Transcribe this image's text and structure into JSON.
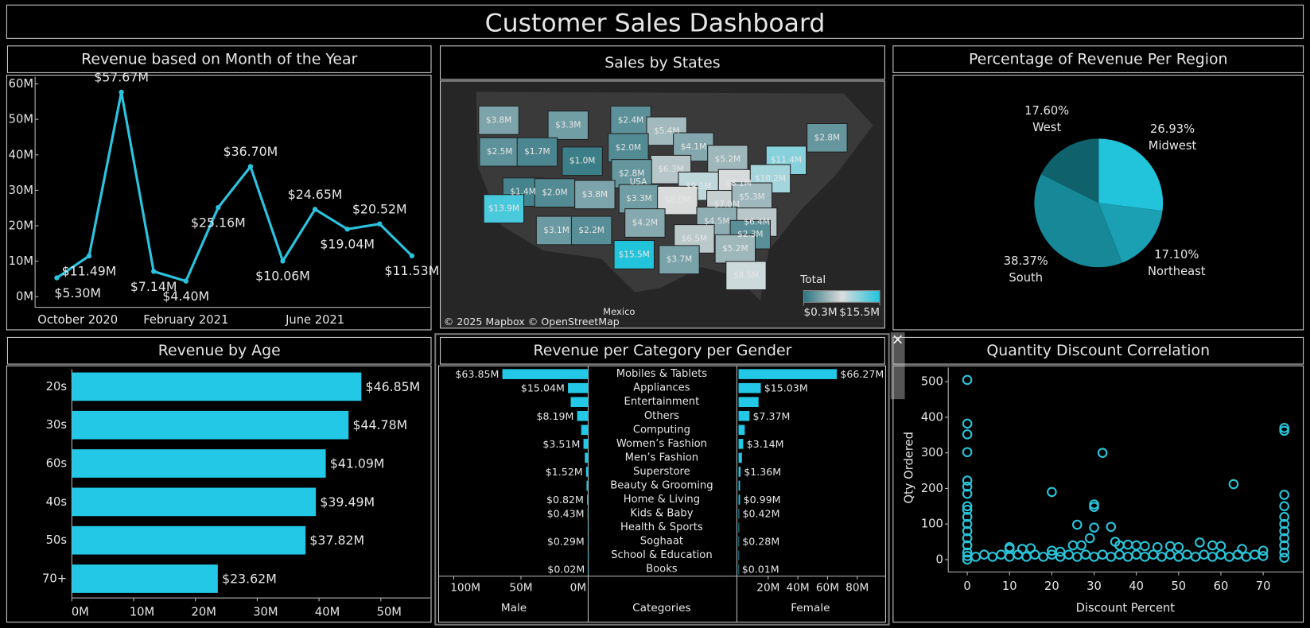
{
  "title": "Customer Sales Dashboard",
  "chart_data": [
    {
      "type": "line",
      "title": "Revenue based on Month of the Year",
      "color": "#2bc4e0",
      "categories": [
        "October 2020",
        null,
        null,
        null,
        "February 2021",
        null,
        null,
        null,
        "June 2021",
        null,
        null,
        null
      ],
      "values": [
        5.3,
        11.49,
        57.67,
        7.14,
        4.4,
        25.16,
        36.7,
        10.06,
        24.65,
        19.04,
        20.52,
        11.53
      ],
      "value_labels": [
        "$5.30M",
        "$11.49M",
        "$57.67M",
        "$7.14M",
        "$4.40M",
        "$25.16M",
        "$36.70M",
        "$10.06M",
        "$24.65M",
        "$19.04M",
        "$20.52M",
        "$11.53M"
      ],
      "ylim": [
        -3,
        62
      ],
      "yticks": [
        {
          "value": 0,
          "label": "0M"
        },
        {
          "value": 10,
          "label": "10M"
        },
        {
          "value": 20,
          "label": "20M"
        },
        {
          "value": 30,
          "label": "30M"
        },
        {
          "value": 40,
          "label": "40M"
        },
        {
          "value": 50,
          "label": "50M"
        },
        {
          "value": 60,
          "label": "60M"
        }
      ]
    },
    {
      "type": "map",
      "title": "Sales by States",
      "values": [
        3.8,
        3.3,
        2.4,
        5.4,
        2.8,
        2.5,
        1.7,
        1.0,
        2.0,
        4.1,
        5.2,
        11.4,
        6.3,
        2.8,
        1.4,
        2.0,
        3.8,
        3.3,
        9.1,
        8.1,
        10.2,
        13.9,
        8.0,
        7.0,
        5.3,
        3.1,
        2.2,
        4.2,
        4.5,
        6.4,
        6.5,
        2.3,
        15.5,
        5.2,
        3.7,
        8.5
      ],
      "value_labels": [
        "$3.8M",
        "$3.3M",
        "$2.4M",
        "$5.4M",
        "$2.8M",
        "$2.5M",
        "$1.7M",
        "$1.0M",
        "$2.0M",
        "$4.1M",
        "$5.2M",
        "$11.4M",
        "$6.3M",
        "$2.8M",
        "$1.4M",
        "$2.0M",
        "$3.8M",
        "$3.3M",
        "$9.1M",
        "$8.1M",
        "$10.2M",
        "$13.9M",
        "$8.0M",
        "$7.0M",
        "$5.3M",
        "$3.1M",
        "$2.2M",
        "$4.2M",
        "$4.5M",
        "$6.4M",
        "$6.5M",
        "$2.3M",
        "$15.5M",
        "$5.2M",
        "$3.7M",
        "$8.5M"
      ],
      "colors": {
        "low": "#2b7480",
        "mid": "#dcdcdc",
        "high": "#22c4dc"
      },
      "legend": {
        "title": "Total",
        "ticks": [
          {
            "value": 0.3,
            "label": "$0.3M"
          },
          {
            "value": 15.5,
            "label": "$15.5M"
          }
        ]
      },
      "annotations": [
        "USA",
        "Mexico"
      ],
      "attribution": "© 2025 Mapbox © OpenStreetMap"
    },
    {
      "type": "pie",
      "title": "Percentage of Revenue Per Region",
      "categories": [
        "Midwest",
        "Northeast",
        "South",
        "West"
      ],
      "values": [
        26.93,
        17.1,
        38.37,
        17.6
      ],
      "value_labels": [
        "26.93%",
        "17.10%",
        "38.37%",
        "17.60%"
      ],
      "colors": [
        "#22c4dc",
        "#1a9fb3",
        "#168898",
        "#0f626c"
      ]
    },
    {
      "type": "hbar",
      "title": "Revenue by Age",
      "color": "#22c8e5",
      "categories": [
        "20s",
        "30s",
        "60s",
        "40s",
        "50s",
        "70+"
      ],
      "values": [
        46.85,
        44.78,
        41.09,
        39.49,
        37.82,
        23.62
      ],
      "value_labels": [
        "$46.85M",
        "$44.78M",
        "$41.09M",
        "$39.49M",
        "$37.82M",
        "$23.62M"
      ],
      "xlim": [
        0,
        58
      ],
      "xticks": [
        {
          "value": 0,
          "label": "0M"
        },
        {
          "value": 10,
          "label": "10M"
        },
        {
          "value": 20,
          "label": "20M"
        },
        {
          "value": 30,
          "label": "30M"
        },
        {
          "value": 40,
          "label": "40M"
        },
        {
          "value": 50,
          "label": "50M"
        }
      ]
    },
    {
      "type": "butterfly",
      "title": "Revenue per Category per Gender",
      "color": "#22c8e5",
      "categories_label": "Categories",
      "categories": [
        "Mobiles & Tablets",
        "Appliances",
        "Entertainment",
        "Others",
        "Computing",
        "Women’s Fashion",
        "Men’s Fashion",
        "Superstore",
        "Beauty & Grooming",
        "Home & Living",
        "Kids & Baby",
        "Health & Sports",
        "Soghaat",
        "School & Education",
        "Books"
      ],
      "series": [
        {
          "name": "Male",
          "values": [
            63.85,
            15.04,
            13.0,
            8.19,
            5.2,
            3.51,
            2.5,
            1.52,
            1.2,
            0.82,
            0.43,
            0.3,
            0.29,
            0.05,
            0.02
          ],
          "value_labels": [
            "$63.85M",
            "$15.04M",
            null,
            "$8.19M",
            null,
            "$3.51M",
            null,
            "$1.52M",
            null,
            "$0.82M",
            "$0.43M",
            null,
            "$0.29M",
            null,
            "$0.02M"
          ],
          "xlim": [
            0,
            110
          ],
          "xticks": [
            {
              "value": 100,
              "label": "100M"
            },
            {
              "value": 50,
              "label": "50M"
            },
            {
              "value": 0,
              "label": "0M"
            }
          ]
        },
        {
          "name": "Female",
          "values": [
            66.27,
            15.03,
            13.5,
            7.37,
            4.2,
            3.14,
            2.3,
            1.36,
            1.0,
            0.99,
            0.42,
            0.4,
            0.28,
            0.1,
            0.01
          ],
          "value_labels": [
            "$66.27M",
            "$15.03M",
            null,
            "$7.37M",
            null,
            "$3.14M",
            null,
            "$1.36M",
            null,
            "$0.99M",
            "$0.42M",
            null,
            "$0.28M",
            null,
            "$0.01M"
          ],
          "xlim": [
            0,
            98
          ],
          "xticks": [
            {
              "value": 20,
              "label": "20M"
            },
            {
              "value": 40,
              "label": "40M"
            },
            {
              "value": 60,
              "label": "60M"
            },
            {
              "value": 80,
              "label": "80M"
            }
          ]
        }
      ]
    },
    {
      "type": "scatter",
      "title": "Quantity Discount Correlation",
      "color": "#29c5db",
      "x_label": "Discount Percent",
      "y_label": "Qty Ordered",
      "x": [
        0,
        0,
        0,
        0,
        0,
        0,
        0,
        0,
        0,
        0,
        0,
        0,
        0,
        0,
        0,
        0,
        0,
        10,
        10,
        13,
        15,
        20,
        20,
        22,
        25,
        26,
        27,
        29,
        30,
        30,
        30,
        32,
        34,
        35,
        36,
        38,
        40,
        42,
        45,
        48,
        50,
        55,
        58,
        60,
        63,
        65,
        70,
        70,
        75,
        75,
        75,
        75,
        75,
        75,
        75,
        75,
        75,
        75,
        75,
        2,
        4,
        6,
        8,
        10,
        12,
        14,
        16,
        18,
        20,
        22,
        24,
        26,
        28,
        30,
        32,
        34,
        36,
        38,
        40,
        42,
        44,
        46,
        48,
        50,
        52,
        54,
        56,
        58,
        60,
        62,
        64,
        66,
        68
      ],
      "values": [
        505,
        382,
        352,
        302,
        222,
        205,
        185,
        150,
        140,
        120,
        100,
        80,
        60,
        40,
        20,
        10,
        0,
        35,
        30,
        30,
        32,
        190,
        25,
        22,
        40,
        98,
        40,
        60,
        155,
        148,
        90,
        300,
        92,
        50,
        40,
        42,
        40,
        38,
        35,
        38,
        35,
        48,
        40,
        38,
        212,
        30,
        25,
        10,
        370,
        362,
        182,
        150,
        120,
        100,
        80,
        60,
        40,
        20,
        5,
        8,
        14,
        8,
        14,
        8,
        14,
        8,
        14,
        8,
        14,
        8,
        14,
        8,
        14,
        8,
        14,
        8,
        14,
        8,
        14,
        8,
        14,
        8,
        14,
        8,
        14,
        8,
        14,
        8,
        14,
        8,
        14,
        8,
        14
      ],
      "xlim": [
        -4.5,
        79.5
      ],
      "xticks": [
        0,
        10,
        20,
        30,
        40,
        50,
        60,
        70
      ],
      "ylim": [
        -35,
        540
      ],
      "yticks": [
        0,
        100,
        200,
        300,
        400,
        500
      ]
    }
  ]
}
